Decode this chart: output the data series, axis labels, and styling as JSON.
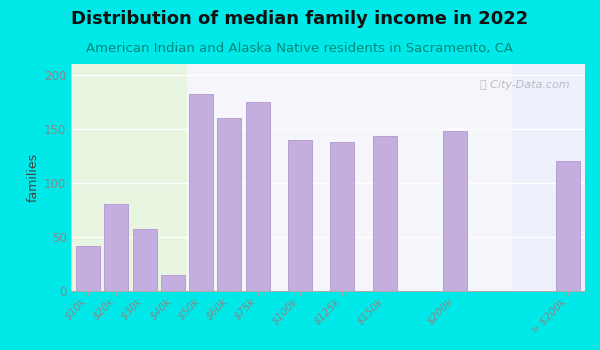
{
  "title": "Distribution of median family income in 2022",
  "subtitle": "American Indian and Alaska Native residents in Sacramento, CA",
  "ylabel": "families",
  "categories": [
    "$10k",
    "$20k",
    "$30k",
    "$40k",
    "$50k",
    "$60k",
    "$75k",
    "$100k",
    "$125k",
    "$150k",
    "$200k",
    "> $200k"
  ],
  "values": [
    42,
    80,
    57,
    15,
    182,
    160,
    175,
    140,
    138,
    143,
    148,
    120
  ],
  "bar_color": "#c4aee0",
  "bar_edge_color": "#b89fd4",
  "ylim": [
    0,
    210
  ],
  "yticks": [
    0,
    50,
    100,
    150,
    200
  ],
  "background_color": "#00e8e8",
  "title_color": "#111111",
  "subtitle_color": "#00897b",
  "ylabel_color": "#444444",
  "tick_color": "#888888",
  "watermark": "City-Data.com",
  "title_fontsize": 13,
  "subtitle_fontsize": 9.5,
  "ylabel_fontsize": 9,
  "x_positions": [
    0,
    1,
    2,
    3,
    4,
    5,
    6,
    7.5,
    9,
    10.5,
    13,
    17
  ],
  "bar_width": 0.85
}
